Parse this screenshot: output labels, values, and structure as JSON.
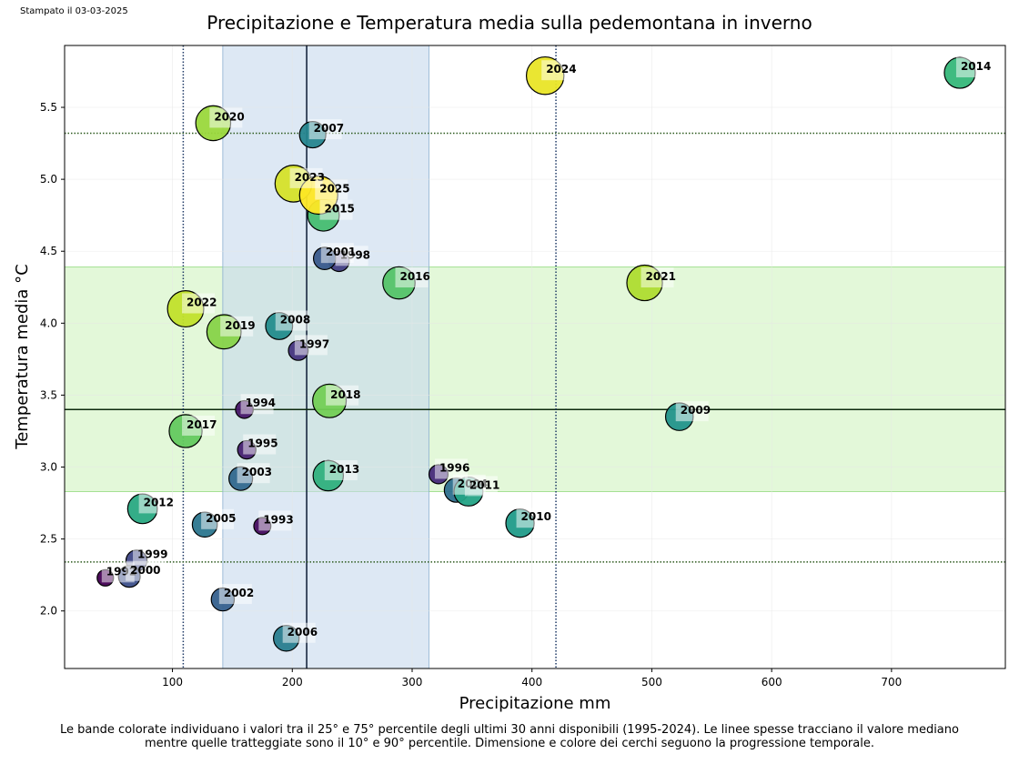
{
  "stamp": "Stampato il 03-03-2025",
  "caption_line1": "Le bande colorate individuano i valori tra il 25° e 75° percentile degli ultimi 30 anni disponibili (1995-2024). Le linee spesse tracciano il valore mediano",
  "caption_line2": "mentre quelle tratteggiate sono il 10° e 90° percentile. Dimensione e colore dei cerchi seguono la progressione temporale.",
  "chart_data": {
    "type": "scatter",
    "title": "Precipitazione e Temperatura media sulla pedemontana in inverno",
    "xlabel": "Precipitazione mm",
    "ylabel": "Temperatura media °C",
    "xlim": [
      10,
      795
    ],
    "ylim": [
      1.6,
      5.93
    ],
    "xticks": [
      100,
      200,
      300,
      400,
      500,
      600,
      700
    ],
    "yticks": [
      2.0,
      2.5,
      3.0,
      3.5,
      4.0,
      4.5,
      5.0,
      5.5
    ],
    "grid": true,
    "reference": {
      "x_p25": 142,
      "x_p75": 314,
      "x_median": 212,
      "x_p10": 109,
      "x_p90": 420,
      "y_p25": 2.83,
      "y_p75": 4.39,
      "y_median": 3.4,
      "y_p10": 2.34,
      "y_p90": 5.32,
      "x_band_color": "#c6d9ec",
      "y_band_color": "#c8f2b4"
    },
    "points": [
      {
        "year": 1992,
        "x": 44,
        "y": 2.23
      },
      {
        "year": 1993,
        "x": 175,
        "y": 2.59
      },
      {
        "year": 1994,
        "x": 160,
        "y": 3.4
      },
      {
        "year": 1995,
        "x": 162,
        "y": 3.12
      },
      {
        "year": 1996,
        "x": 322,
        "y": 2.95
      },
      {
        "year": 1997,
        "x": 205,
        "y": 3.81
      },
      {
        "year": 1998,
        "x": 239,
        "y": 4.43
      },
      {
        "year": 1999,
        "x": 70,
        "y": 2.35
      },
      {
        "year": 2000,
        "x": 64,
        "y": 2.24
      },
      {
        "year": 2001,
        "x": 227,
        "y": 4.45
      },
      {
        "year": 2002,
        "x": 142,
        "y": 2.08
      },
      {
        "year": 2003,
        "x": 157,
        "y": 2.92
      },
      {
        "year": 2004,
        "x": 337,
        "y": 2.84
      },
      {
        "year": 2005,
        "x": 127,
        "y": 2.6
      },
      {
        "year": 2006,
        "x": 195,
        "y": 1.81
      },
      {
        "year": 2007,
        "x": 217,
        "y": 5.31
      },
      {
        "year": 2008,
        "x": 189,
        "y": 3.98
      },
      {
        "year": 2009,
        "x": 523,
        "y": 3.35
      },
      {
        "year": 2010,
        "x": 390,
        "y": 2.61
      },
      {
        "year": 2011,
        "x": 347,
        "y": 2.83
      },
      {
        "year": 2012,
        "x": 75,
        "y": 2.71
      },
      {
        "year": 2013,
        "x": 230,
        "y": 2.94
      },
      {
        "year": 2014,
        "x": 757,
        "y": 5.74
      },
      {
        "year": 2015,
        "x": 226,
        "y": 4.75
      },
      {
        "year": 2016,
        "x": 289,
        "y": 4.28
      },
      {
        "year": 2017,
        "x": 111,
        "y": 3.25
      },
      {
        "year": 2018,
        "x": 231,
        "y": 3.46
      },
      {
        "year": 2019,
        "x": 143,
        "y": 3.94
      },
      {
        "year": 2020,
        "x": 134,
        "y": 5.39
      },
      {
        "year": 2021,
        "x": 494,
        "y": 4.28
      },
      {
        "year": 2022,
        "x": 111,
        "y": 4.1
      },
      {
        "year": 2023,
        "x": 201,
        "y": 4.97
      },
      {
        "year": 2024,
        "x": 411,
        "y": 5.72
      },
      {
        "year": 2025,
        "x": 222,
        "y": 4.89
      }
    ]
  }
}
